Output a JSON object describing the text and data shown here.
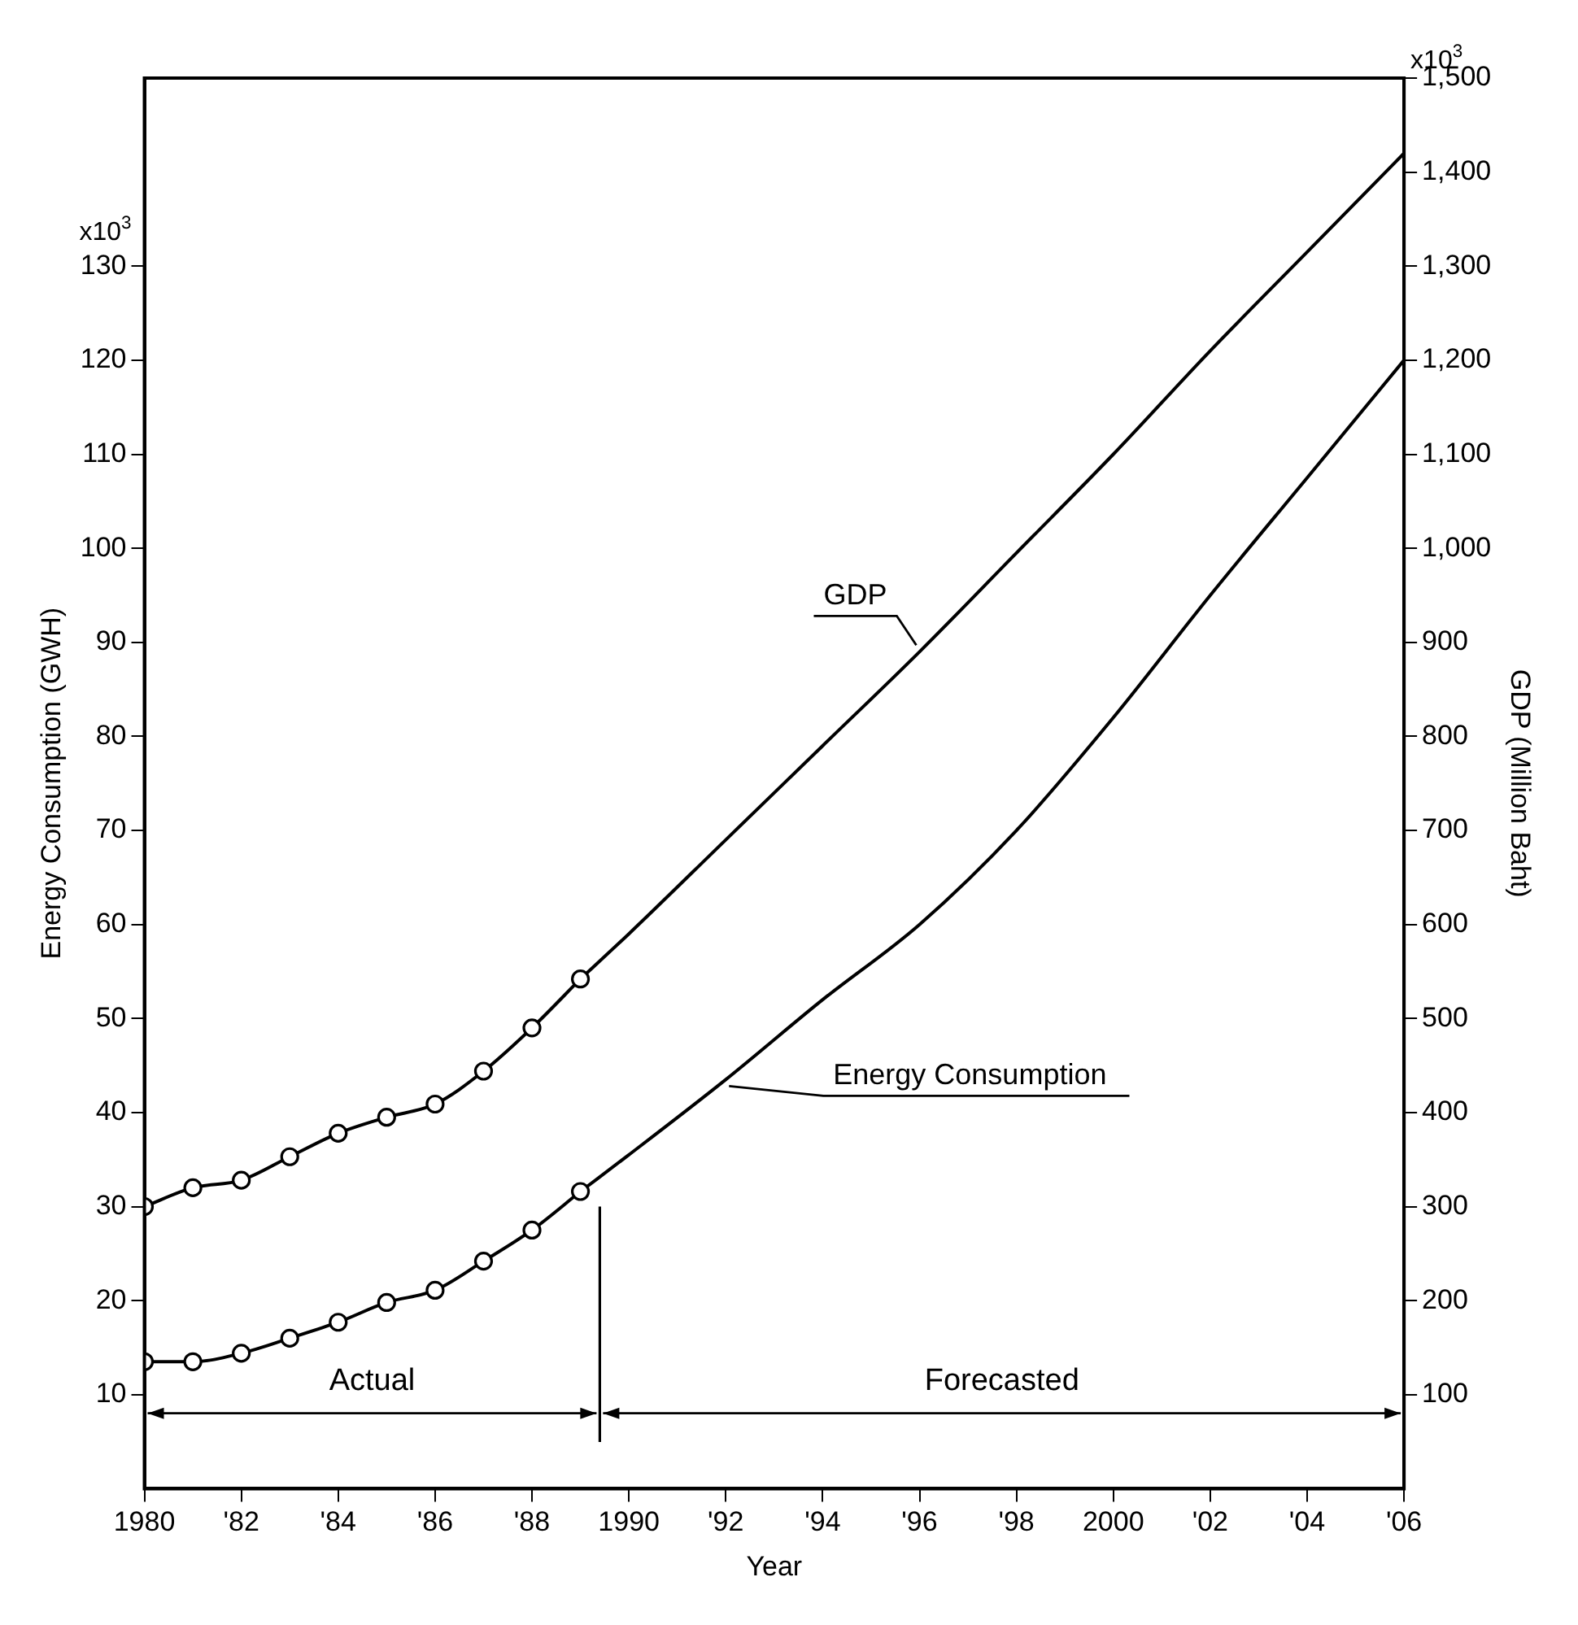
{
  "chart_data": {
    "type": "line",
    "xlabel": "Year",
    "ylabel": "Energy Consumption (GWH)",
    "y2label": "GDP (Million Baht)",
    "xlim": [
      1980,
      2006
    ],
    "xticks": [
      {
        "value": 1980,
        "label": "1980"
      },
      {
        "value": 1982,
        "label": "'82"
      },
      {
        "value": 1984,
        "label": "'84"
      },
      {
        "value": 1986,
        "label": "'86"
      },
      {
        "value": 1988,
        "label": "'88"
      },
      {
        "value": 1990,
        "label": "1990"
      },
      {
        "value": 1992,
        "label": "'92"
      },
      {
        "value": 1994,
        "label": "'94"
      },
      {
        "value": 1996,
        "label": "'96"
      },
      {
        "value": 1998,
        "label": "'98"
      },
      {
        "value": 2000,
        "label": "2000"
      },
      {
        "value": 2002,
        "label": "'02"
      },
      {
        "value": 2004,
        "label": "'04"
      },
      {
        "value": 2006,
        "label": "'06"
      }
    ],
    "ylim": [
      0,
      150
    ],
    "yticks": [
      10,
      20,
      30,
      40,
      50,
      60,
      70,
      80,
      90,
      100,
      110,
      120,
      130
    ],
    "y2lim": [
      0,
      1500
    ],
    "y2ticks": [
      100,
      200,
      300,
      400,
      500,
      600,
      700,
      800,
      900,
      {
        "value": 1000,
        "label": "1,000"
      },
      {
        "value": 1100,
        "label": "1,100"
      },
      {
        "value": 1200,
        "label": "1,200"
      },
      {
        "value": 1300,
        "label": "1,300"
      },
      {
        "value": 1400,
        "label": "1,400"
      },
      {
        "value": 1500,
        "label": "1,500"
      }
    ],
    "grid": false,
    "legend": false,
    "series": [
      {
        "axis": "y2",
        "color": "#000000",
        "marker": "circle",
        "x": [
          1980,
          1981,
          1982,
          1983,
          1984,
          1985,
          1986,
          1987,
          1988,
          1989
        ],
        "values": [
          300,
          320,
          328,
          353,
          378,
          395,
          409,
          444,
          490,
          542
        ]
      },
      {
        "axis": "y2",
        "name": "GDP",
        "color": "#000000",
        "marker": "none",
        "x": [
          1989,
          1990,
          1992,
          1994,
          1996,
          1998,
          2000,
          2002,
          2004,
          2006
        ],
        "values": [
          542,
          590,
          690,
          790,
          890,
          995,
          1100,
          1210,
          1315,
          1420
        ]
      },
      {
        "axis": "y",
        "color": "#000000",
        "marker": "circle",
        "x": [
          1980,
          1981,
          1982,
          1983,
          1984,
          1985,
          1986,
          1987,
          1988,
          1989
        ],
        "values": [
          13.5,
          13.5,
          14.4,
          16.0,
          17.7,
          19.8,
          21.1,
          24.2,
          27.5,
          31.6
        ]
      },
      {
        "axis": "y",
        "name": "Energy Consumption",
        "color": "#000000",
        "marker": "none",
        "x": [
          1989,
          1990,
          1992,
          1994,
          1996,
          1998,
          2000,
          2002,
          2004,
          2006
        ],
        "values": [
          31.6,
          35.5,
          43.5,
          52,
          60,
          70,
          82,
          95,
          107.5,
          120
        ]
      }
    ],
    "ref_lines": [
      {
        "axis": "x",
        "value": 1989.4,
        "color": "#000000"
      }
    ],
    "annotations": [
      "x10$^{3}$",
      "x10$^{3}$",
      "Actual",
      "Forecasted"
    ]
  }
}
